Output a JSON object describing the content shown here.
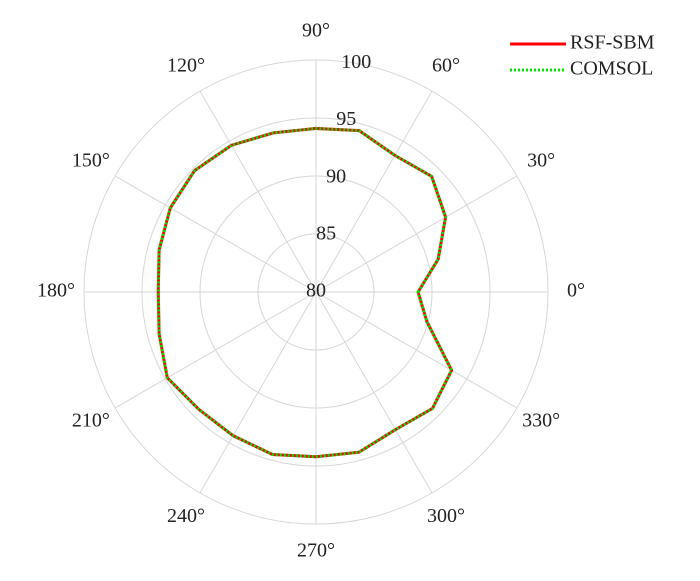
{
  "chart_data": {
    "type": "polar",
    "theta": [
      0,
      15,
      30,
      45,
      60,
      75,
      90,
      105,
      120,
      135,
      150,
      165,
      180,
      195,
      210,
      225,
      240,
      255,
      270,
      285,
      300,
      315,
      330,
      345
    ],
    "series": [
      {
        "name": "RSF-SBM",
        "color": "#ff0000",
        "values": [
          88.8,
          90.9,
          92.9,
          94.1,
          93.6,
          94.4,
          94.1,
          94.2,
          94.6,
          94.8,
          94.5,
          94.0,
          93.6,
          94.0,
          94.8,
          94.3,
          94.3,
          94.5,
          94.2,
          94.3,
          93.7,
          94.2,
          93.5,
          89.9
        ]
      },
      {
        "name": "COMSOL",
        "color": "#00e000",
        "values": [
          88.8,
          90.9,
          92.9,
          94.1,
          93.6,
          94.4,
          94.1,
          94.2,
          94.6,
          94.8,
          94.5,
          94.0,
          93.6,
          94.0,
          94.8,
          94.3,
          94.3,
          94.5,
          94.2,
          94.3,
          93.7,
          94.2,
          93.5,
          89.9
        ]
      }
    ],
    "rlim": [
      80,
      100
    ],
    "rticks": [
      80,
      85,
      90,
      95,
      100
    ],
    "thetaticks": [
      {
        "value": 0,
        "label": "0°"
      },
      {
        "value": 30,
        "label": "30°"
      },
      {
        "value": 60,
        "label": "60°"
      },
      {
        "value": 90,
        "label": "90°"
      },
      {
        "value": 120,
        "label": "120°"
      },
      {
        "value": 150,
        "label": "150°"
      },
      {
        "value": 180,
        "label": "180°"
      },
      {
        "value": 210,
        "label": "210°"
      },
      {
        "value": 240,
        "label": "240°"
      },
      {
        "value": 270,
        "label": "270°"
      },
      {
        "value": 300,
        "label": "300°"
      },
      {
        "value": 330,
        "label": "330°"
      }
    ],
    "grid": true,
    "legend": "upper right"
  }
}
